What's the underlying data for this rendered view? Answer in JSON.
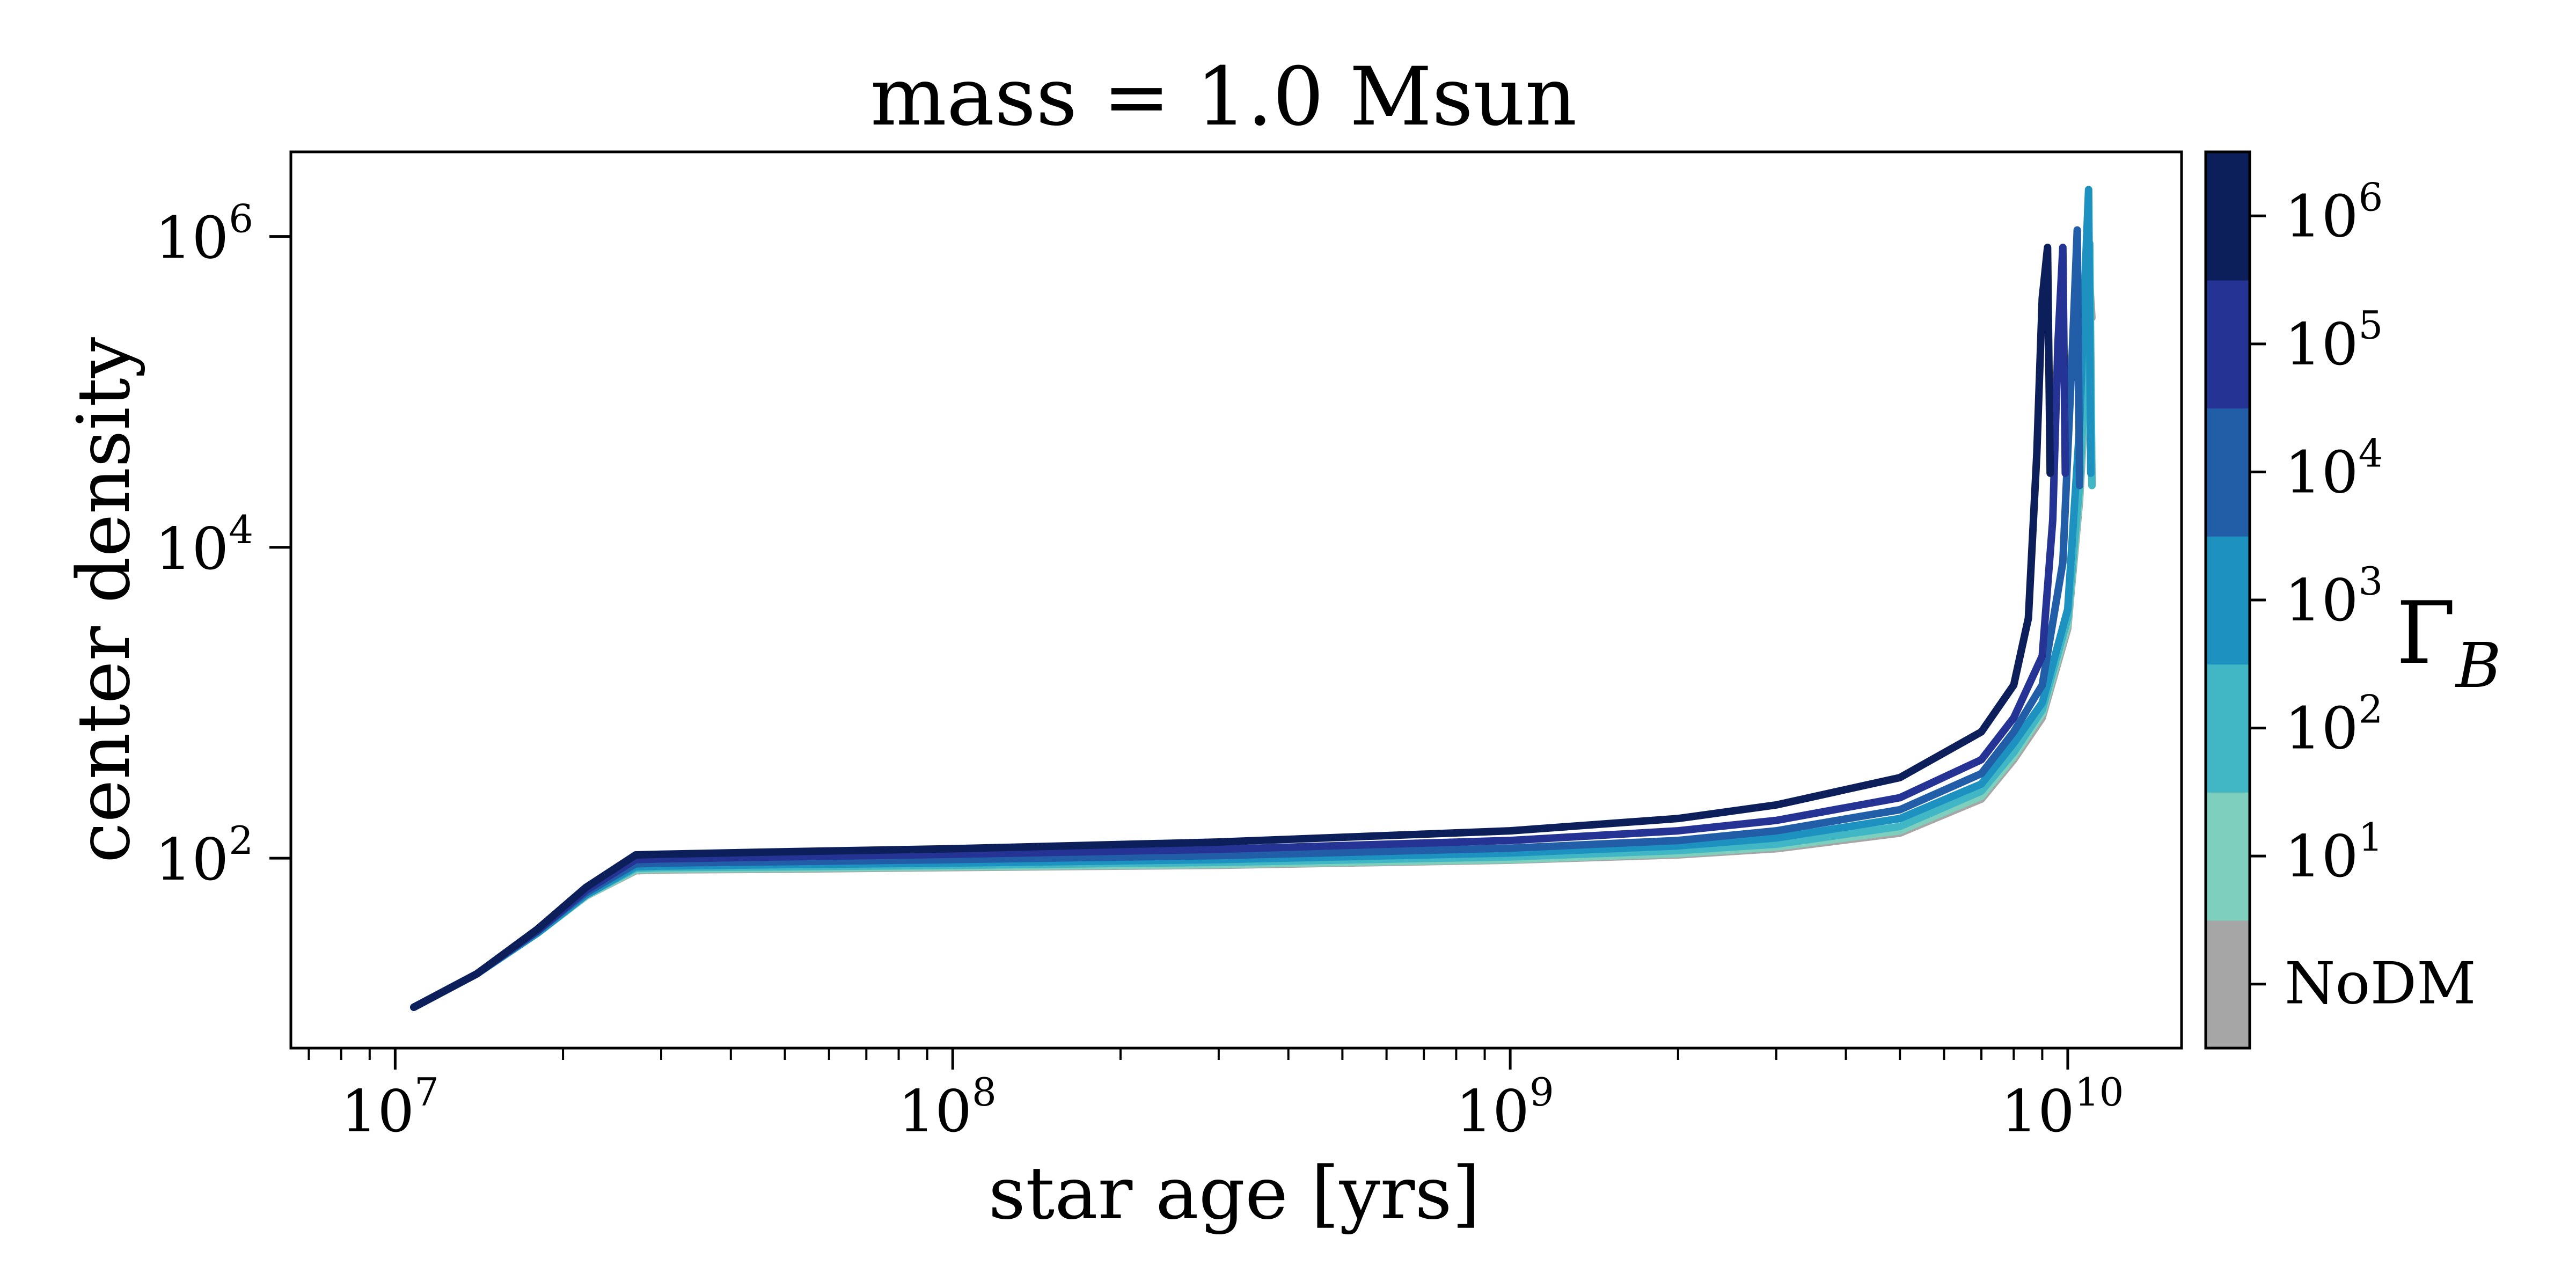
{
  "chart_data": {
    "type": "line",
    "title": "mass = 1.0 Msun",
    "xlabel": "star age [yrs]",
    "ylabel": "center density",
    "xscale": "log",
    "yscale": "log",
    "xlim": [
      6500000,
      16000000000
    ],
    "ylim": [
      6.0,
      3500000
    ],
    "grid": false,
    "x_ticks": [
      {
        "base": "10",
        "exp": "7",
        "value": 10000000
      },
      {
        "base": "10",
        "exp": "8",
        "value": 100000000
      },
      {
        "base": "10",
        "exp": "9",
        "value": 1000000000
      },
      {
        "base": "10",
        "exp": "10",
        "value": 10000000000
      }
    ],
    "y_ticks": [
      {
        "base": "10",
        "exp": "2",
        "value": 100
      },
      {
        "base": "10",
        "exp": "4",
        "value": 10000
      },
      {
        "base": "10",
        "exp": "6",
        "value": 1000000
      }
    ],
    "colorbar": {
      "label_main": "Γ",
      "label_sub": "B",
      "levels": [
        {
          "tick": "NoDM",
          "base": "",
          "exp": "",
          "color": "#a6a6a6"
        },
        {
          "tick": "",
          "base": "10",
          "exp": "1",
          "color": "#7fcfbf"
        },
        {
          "tick": "",
          "base": "10",
          "exp": "2",
          "color": "#41b6c4"
        },
        {
          "tick": "",
          "base": "10",
          "exp": "3",
          "color": "#1d91c0"
        },
        {
          "tick": "",
          "base": "10",
          "exp": "4",
          "color": "#225ea8"
        },
        {
          "tick": "",
          "base": "10",
          "exp": "5",
          "color": "#253494"
        },
        {
          "tick": "",
          "base": "10",
          "exp": "6",
          "color": "#0c1f5a"
        }
      ]
    },
    "series": [
      {
        "level": "NoDM",
        "color": "#a6a6a6",
        "x": [
          10800000,
          14000000,
          18000000,
          22000000,
          27000000,
          30000000,
          50000000,
          100000000,
          300000000,
          1000000000,
          2000000000,
          3000000000,
          5000000000,
          7000000000,
          8000000000,
          9000000000,
          10000000000,
          10500000000,
          10800000000,
          10950000000,
          11050000000
        ],
        "y": [
          11,
          18,
          33,
          57,
          83,
          84,
          85,
          87,
          90,
          97,
          105,
          115,
          145,
          240,
          430,
          800,
          3000,
          20000,
          120000,
          500000,
          300000
        ]
      },
      {
        "level": "10^1",
        "color": "#7fcfbf",
        "x": [
          10800000,
          14000000,
          18000000,
          22000000,
          27000000,
          30000000,
          50000000,
          100000000,
          300000000,
          1000000000,
          2000000000,
          3000000000,
          5000000000,
          7000000000,
          8000000000,
          9000000000,
          10000000000,
          10500000000,
          10800000000,
          10950000000,
          11050000000
        ],
        "y": [
          11,
          18,
          33,
          57,
          84,
          85,
          86,
          88,
          91,
          98,
          107,
          118,
          150,
          250,
          450,
          850,
          3200,
          22000,
          150000,
          700000,
          25000
        ]
      },
      {
        "level": "10^2",
        "color": "#41b6c4",
        "x": [
          10800000,
          14000000,
          18000000,
          22000000,
          27000000,
          30000000,
          50000000,
          100000000,
          300000000,
          1000000000,
          2000000000,
          3000000000,
          5000000000,
          7000000000,
          8000000000,
          9000000000,
          10000000000,
          10500000000,
          10800000000,
          10950000000,
          11050000000
        ],
        "y": [
          11,
          18,
          33,
          58,
          86,
          87,
          88,
          90,
          94,
          102,
          112,
          123,
          160,
          270,
          480,
          900,
          3500,
          25000,
          200000,
          900000,
          25000
        ]
      },
      {
        "level": "10^3",
        "color": "#1d91c0",
        "x": [
          10800000,
          14000000,
          18000000,
          22000000,
          27000000,
          30000000,
          50000000,
          100000000,
          300000000,
          1000000000,
          2000000000,
          3000000000,
          5000000000,
          7000000000,
          8000000000,
          9000000000,
          10000000000,
          10500000000,
          10800000000,
          10900000000,
          11000000000
        ],
        "y": [
          11,
          18,
          33,
          58,
          88,
          89,
          91,
          93,
          98,
          108,
          120,
          135,
          180,
          300,
          550,
          1000,
          4000,
          60000,
          900000,
          2000000,
          30000
        ]
      },
      {
        "level": "10^4",
        "color": "#225ea8",
        "x": [
          10800000,
          14000000,
          18000000,
          22000000,
          27000000,
          30000000,
          50000000,
          100000000,
          300000000,
          1000000000,
          2000000000,
          3000000000,
          5000000000,
          7000000000,
          8000000000,
          9000000000,
          9800000000,
          10200000000,
          10400000000,
          10500000000
        ],
        "y": [
          11,
          18,
          34,
          60,
          92,
          93,
          95,
          98,
          104,
          116,
          130,
          150,
          205,
          350,
          650,
          1300,
          8000,
          200000,
          1100000,
          25000
        ]
      },
      {
        "level": "10^5",
        "color": "#253494",
        "x": [
          10800000,
          14000000,
          18000000,
          22000000,
          27000000,
          30000000,
          50000000,
          100000000,
          300000000,
          1000000000,
          2000000000,
          3000000000,
          5000000000,
          7000000000,
          8000000000,
          9000000000,
          9400000000,
          9600000000,
          9800000000,
          9900000000
        ],
        "y": [
          11,
          18,
          34,
          62,
          98,
          99,
          102,
          106,
          114,
          130,
          150,
          175,
          245,
          430,
          800,
          2000,
          15000,
          200000,
          850000,
          30000
        ]
      },
      {
        "level": "10^6",
        "color": "#0c1f5a",
        "x": [
          10800000,
          14000000,
          18000000,
          22000000,
          27000000,
          30000000,
          50000000,
          100000000,
          300000000,
          1000000000,
          2000000000,
          3000000000,
          5000000000,
          7000000000,
          8000000000,
          8500000000,
          8800000000,
          9000000000,
          9200000000,
          9300000000
        ],
        "y": [
          11,
          18,
          35,
          65,
          105,
          106,
          110,
          115,
          127,
          150,
          180,
          220,
          330,
          650,
          1300,
          3500,
          40000,
          400000,
          850000,
          30000
        ]
      }
    ]
  }
}
